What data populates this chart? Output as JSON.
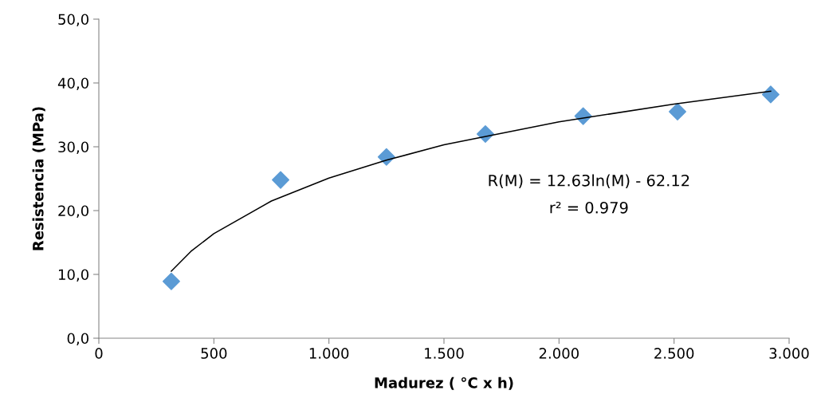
{
  "chart_data": {
    "type": "scatter",
    "xlabel": "Madurez ( °C x h)",
    "ylabel": "Resistencia (MPa)",
    "xlim": [
      0,
      3000
    ],
    "ylim": [
      0,
      50
    ],
    "xticks": [
      0,
      500,
      {
        "value": 1000,
        "label": "1.000"
      },
      {
        "value": 1500,
        "label": "1.500"
      },
      {
        "value": 2000,
        "label": "2.000"
      },
      {
        "value": 2500,
        "label": "2.500"
      },
      {
        "value": 3000,
        "label": "3.000"
      }
    ],
    "yticks": [
      {
        "value": 0,
        "label": "0,0"
      },
      {
        "value": 10,
        "label": "10,0"
      },
      {
        "value": 20,
        "label": "20,0"
      },
      {
        "value": 30,
        "label": "30,0"
      },
      {
        "value": 40,
        "label": "40,0"
      },
      {
        "value": 50,
        "label": "50,0"
      }
    ],
    "grid": false,
    "legend": false,
    "marker": "diamond",
    "series": [
      {
        "color": "#5b9bd5",
        "x": [
          315,
          790,
          1250,
          1680,
          2105,
          2515,
          2920
        ],
        "values": [
          8.9,
          24.8,
          28.4,
          32.0,
          34.8,
          35.5,
          38.2
        ]
      },
      {
        "type": "line",
        "color": "#000000",
        "marker": "none",
        "x": [
          315,
          400,
          500,
          750,
          1000,
          1250,
          1500,
          2000,
          2500,
          2920
        ],
        "values": [
          10.5,
          13.6,
          16.4,
          21.5,
          25.1,
          27.9,
          30.3,
          33.9,
          36.7,
          38.7
        ]
      }
    ],
    "annotations": [
      "R(M) = 12.63ln(M) - 62.12",
      "r² = 0.979"
    ]
  }
}
